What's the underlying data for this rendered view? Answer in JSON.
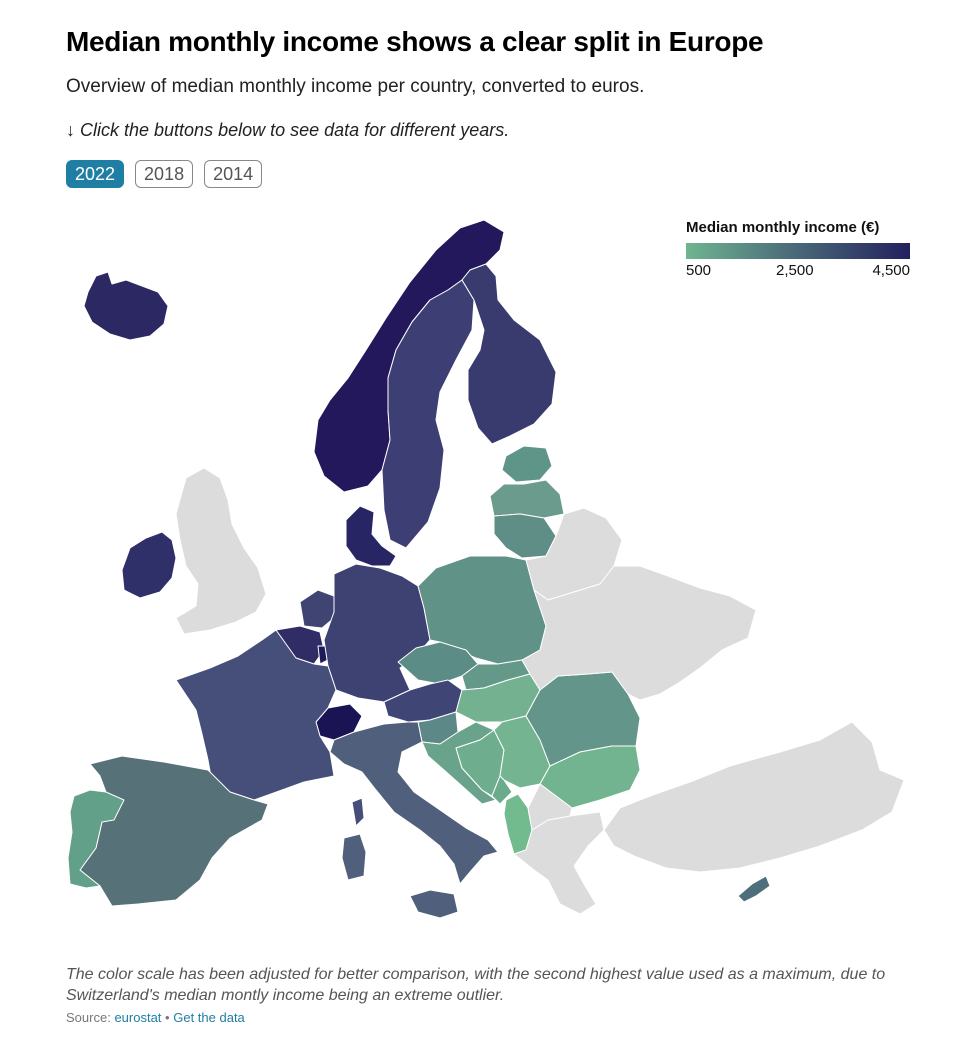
{
  "header": {
    "title": "Median monthly income shows a clear split in Europe",
    "subtitle": "Overview of median monthly income per country, converted to euros.",
    "hint": "↓ Click the buttons below to see data for different years."
  },
  "year_buttons": [
    {
      "label": "2022",
      "active": true
    },
    {
      "label": "2018",
      "active": false
    },
    {
      "label": "2014",
      "active": false
    }
  ],
  "legend": {
    "title": "Median monthly income (€)",
    "min_label": "500",
    "mid_label": "2,500",
    "max_label": "4,500",
    "colors": {
      "low": "#6eb591",
      "mid": "#4c6e7a",
      "high": "#23205e",
      "no_data": "#dcdcdc"
    }
  },
  "footer": {
    "note": "The color scale has been adjusted for better comparison, with the second highest value used as a maximum, due to Switzerland's median montly income being an extreme outlier.",
    "source_prefix": "Source:",
    "source_link": "eurostat",
    "separator": "•",
    "data_link": "Get the data"
  }
}
